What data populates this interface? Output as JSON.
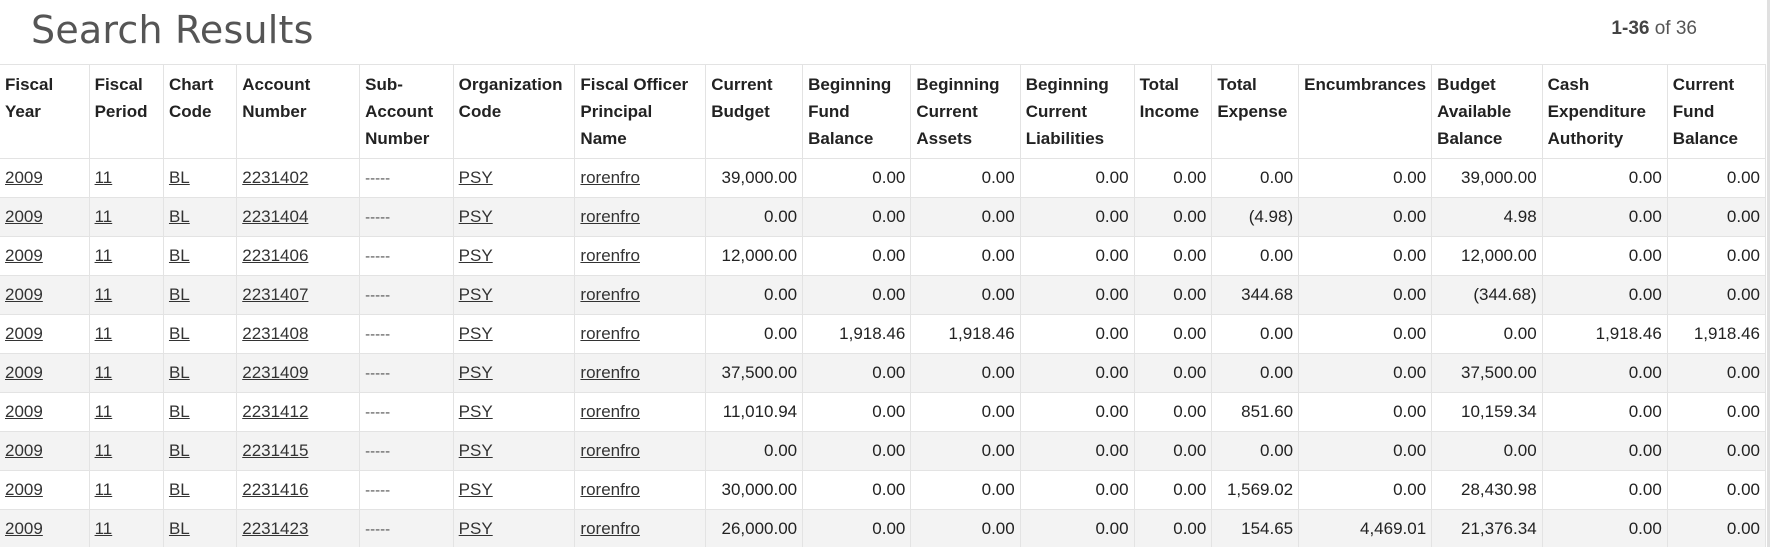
{
  "header": {
    "title": "Search Results",
    "range_bold": "1-36",
    "range_rest": "of 36"
  },
  "table": {
    "columns": [
      "Fiscal Year",
      "Fiscal Period",
      "Chart Code",
      "Account Number",
      "Sub-Account Number",
      "Organization Code",
      "Fiscal Officer Principal Name",
      "Current Budget",
      "Beginning Fund Balance",
      "Beginning Current Assets",
      "Beginning Current Liabilities",
      "Total Income",
      "Total Expense",
      "Encumbrances",
      "Budget Available Balance",
      "Cash Expenditure Authority",
      "Current Fund Balance"
    ],
    "rows": [
      [
        "2009",
        "11",
        "BL",
        "2231402",
        "-----",
        "PSY",
        "rorenfro",
        "39,000.00",
        "0.00",
        "0.00",
        "0.00",
        "0.00",
        "0.00",
        "0.00",
        "39,000.00",
        "0.00",
        "0.00"
      ],
      [
        "2009",
        "11",
        "BL",
        "2231404",
        "-----",
        "PSY",
        "rorenfro",
        "0.00",
        "0.00",
        "0.00",
        "0.00",
        "0.00",
        "(4.98)",
        "0.00",
        "4.98",
        "0.00",
        "0.00"
      ],
      [
        "2009",
        "11",
        "BL",
        "2231406",
        "-----",
        "PSY",
        "rorenfro",
        "12,000.00",
        "0.00",
        "0.00",
        "0.00",
        "0.00",
        "0.00",
        "0.00",
        "12,000.00",
        "0.00",
        "0.00"
      ],
      [
        "2009",
        "11",
        "BL",
        "2231407",
        "-----",
        "PSY",
        "rorenfro",
        "0.00",
        "0.00",
        "0.00",
        "0.00",
        "0.00",
        "344.68",
        "0.00",
        "(344.68)",
        "0.00",
        "0.00"
      ],
      [
        "2009",
        "11",
        "BL",
        "2231408",
        "-----",
        "PSY",
        "rorenfro",
        "0.00",
        "1,918.46",
        "1,918.46",
        "0.00",
        "0.00",
        "0.00",
        "0.00",
        "0.00",
        "1,918.46",
        "1,918.46"
      ],
      [
        "2009",
        "11",
        "BL",
        "2231409",
        "-----",
        "PSY",
        "rorenfro",
        "37,500.00",
        "0.00",
        "0.00",
        "0.00",
        "0.00",
        "0.00",
        "0.00",
        "37,500.00",
        "0.00",
        "0.00"
      ],
      [
        "2009",
        "11",
        "BL",
        "2231412",
        "-----",
        "PSY",
        "rorenfro",
        "11,010.94",
        "0.00",
        "0.00",
        "0.00",
        "0.00",
        "851.60",
        "0.00",
        "10,159.34",
        "0.00",
        "0.00"
      ],
      [
        "2009",
        "11",
        "BL",
        "2231415",
        "-----",
        "PSY",
        "rorenfro",
        "0.00",
        "0.00",
        "0.00",
        "0.00",
        "0.00",
        "0.00",
        "0.00",
        "0.00",
        "0.00",
        "0.00"
      ],
      [
        "2009",
        "11",
        "BL",
        "2231416",
        "-----",
        "PSY",
        "rorenfro",
        "30,000.00",
        "0.00",
        "0.00",
        "0.00",
        "0.00",
        "1,569.02",
        "0.00",
        "28,430.98",
        "0.00",
        "0.00"
      ],
      [
        "2009",
        "11",
        "BL",
        "2231423",
        "-----",
        "PSY",
        "rorenfro",
        "26,000.00",
        "0.00",
        "0.00",
        "0.00",
        "0.00",
        "154.65",
        "4,469.01",
        "21,376.34",
        "0.00",
        "0.00"
      ]
    ]
  }
}
